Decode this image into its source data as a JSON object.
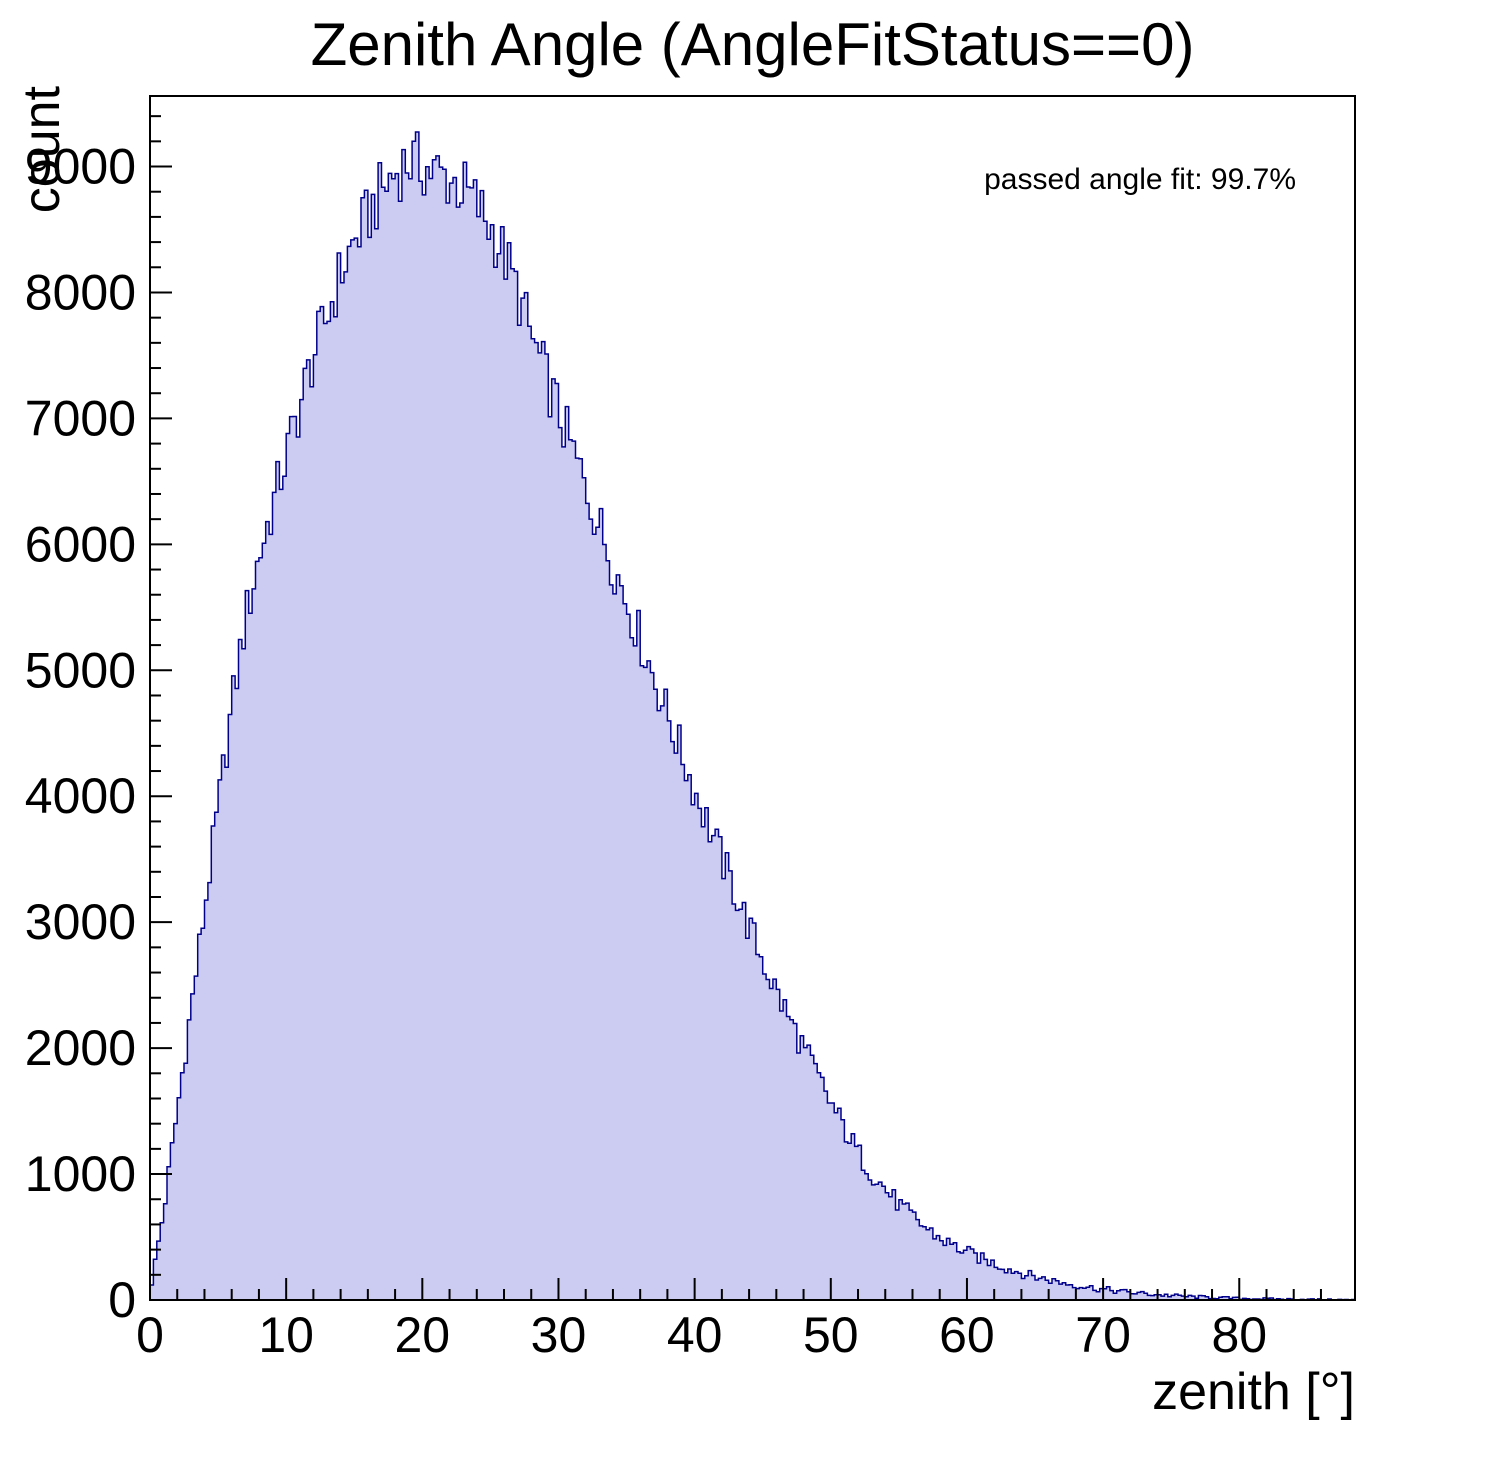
{
  "chart_data": {
    "type": "bar",
    "subtype": "histogram",
    "title": "Zenith Angle (AngleFitStatus==0)",
    "xlabel": "zenith [°]",
    "ylabel": "count",
    "annotation": "passed angle fit: 99.7%",
    "xlim": [
      0,
      88.5
    ],
    "ylim": [
      0,
      9560
    ],
    "x_ticks": [
      0,
      10,
      20,
      30,
      40,
      50,
      60,
      70,
      80
    ],
    "y_ticks": [
      0,
      1000,
      2000,
      3000,
      4000,
      5000,
      6000,
      7000,
      8000,
      9000
    ],
    "x_minor_step": 2,
    "y_minor_step": 200,
    "grid": false,
    "legend_position": "none",
    "bin_start": 0,
    "bin_step": 1,
    "values": [
      60,
      700,
      1500,
      2300,
      3100,
      3900,
      4700,
      5400,
      5900,
      6300,
      6700,
      7100,
      7500,
      7800,
      8150,
      8400,
      8600,
      8800,
      8950,
      9050,
      9000,
      8950,
      8900,
      8820,
      8700,
      8520,
      8300,
      8000,
      7650,
      7350,
      7050,
      6750,
      6450,
      6150,
      5850,
      5550,
      5250,
      4950,
      4650,
      4350,
      4050,
      3780,
      3500,
      3230,
      2960,
      2700,
      2450,
      2220,
      2000,
      1780,
      1560,
      1360,
      1170,
      1010,
      880,
      760,
      660,
      570,
      490,
      430,
      380,
      330,
      290,
      250,
      215,
      185,
      160,
      138,
      118,
      100,
      85,
      72,
      60,
      50,
      42,
      35,
      29,
      24,
      20,
      16,
      13,
      11,
      9,
      7,
      6,
      5,
      4,
      3,
      2
    ],
    "colors": {
      "fill": "#ccccf2",
      "line": "#00008b",
      "axis": "#000000"
    }
  }
}
